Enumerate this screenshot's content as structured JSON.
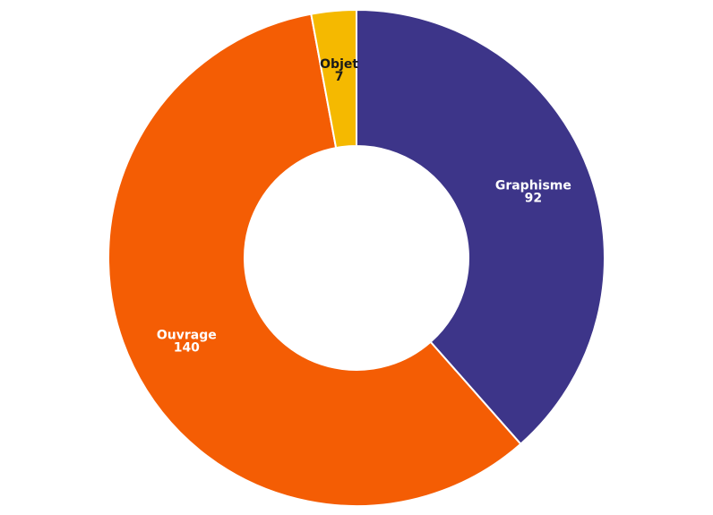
{
  "chart_data": {
    "type": "pie",
    "donut": true,
    "start_angle_deg": 0,
    "direction": "clockwise",
    "slices": [
      {
        "label": "Graphisme",
        "value": 92,
        "color": "#3d3589",
        "label_color": "#ffffff"
      },
      {
        "label": "Ouvrage",
        "value": 140,
        "color": "#f45d04",
        "label_color": "#ffffff"
      },
      {
        "label": "Objet",
        "value": 7,
        "color": "#f5b900",
        "label_color": "#1a1a1a"
      }
    ],
    "legend": "none"
  }
}
